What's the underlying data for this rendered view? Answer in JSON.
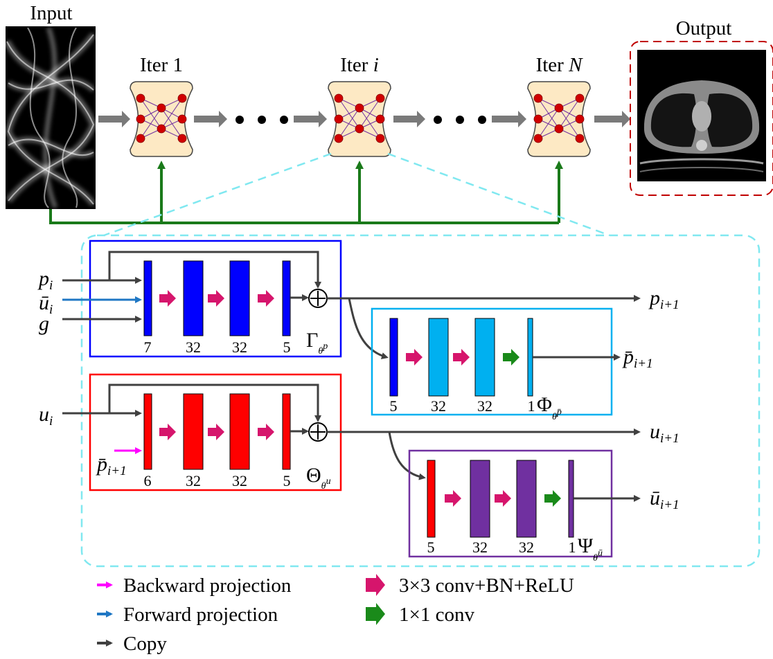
{
  "top": {
    "input_label": "Input",
    "output_label": "Output",
    "iterations": [
      {
        "prefix": "Iter ",
        "index": "1"
      },
      {
        "prefix": "Iter ",
        "index": "i"
      },
      {
        "prefix": "Iter ",
        "index": "N"
      }
    ]
  },
  "gamma_block": {
    "inputs": [
      {
        "var": "p",
        "sub": "i"
      },
      {
        "var": "ū",
        "sub": "i"
      },
      {
        "var": "g",
        "sub": ""
      }
    ],
    "channels": [
      "7",
      "32",
      "32",
      "5"
    ],
    "symbol": "Γ",
    "param": "θ",
    "param_sup": "p",
    "output": {
      "var": "p",
      "sub": "i+1"
    }
  },
  "phi_block": {
    "channels": [
      "5",
      "32",
      "32",
      "1"
    ],
    "symbol": "Φ",
    "param": "θ",
    "param_sup": "p̄",
    "output": {
      "var": "p̄",
      "sub": "i+1"
    }
  },
  "theta_block": {
    "inputs": [
      {
        "var": "u",
        "sub": "i"
      },
      {
        "var": "p̄",
        "sub": "i+1"
      }
    ],
    "channels": [
      "6",
      "32",
      "32",
      "5"
    ],
    "symbol": "Θ",
    "param": "θ",
    "param_sup": "u",
    "output": {
      "var": "u",
      "sub": "i+1"
    }
  },
  "psi_block": {
    "channels": [
      "5",
      "32",
      "32",
      "1"
    ],
    "symbol": "Ψ",
    "param": "θ",
    "param_sup": "ū",
    "output": {
      "var": "ū",
      "sub": "i+1"
    }
  },
  "legend": [
    {
      "label": "Backward projection",
      "color": "#ff00ff"
    },
    {
      "label": "Forward projection",
      "color": "#1f77c4"
    },
    {
      "label": "Copy",
      "color": "#404040"
    },
    {
      "label": "3×3 conv+BN+ReLU",
      "color": "#d6156c"
    },
    {
      "label": "1×1 conv",
      "color": "#1a8a1a"
    }
  ],
  "colors": {
    "gamma": "#0000ff",
    "phi": "#00b0f0",
    "theta": "#ff0000",
    "psi": "#7030a0",
    "skip_line": "#1a7a1a",
    "dashed_outline": "#80e8f0",
    "output_outline": "#c00000",
    "net_fill": "#fde9c4",
    "node": "#d00000"
  }
}
